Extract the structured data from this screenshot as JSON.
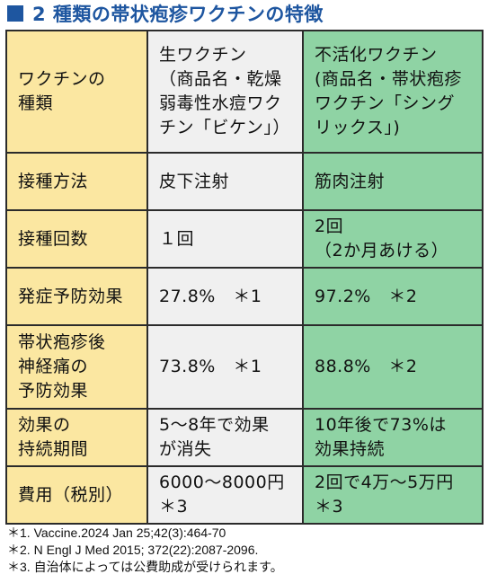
{
  "title": "2 種類の帯状疱疹ワクチンの特徴",
  "colors": {
    "title_blue": "#1e56a0",
    "label_column": "#fbe7a1",
    "live_column": "#f0f0f0",
    "recombinant_column": "#8fd3a4",
    "border": "#2b2b2b"
  },
  "icons": {
    "title_marker": "filled-square"
  },
  "table": {
    "rows": [
      {
        "label": "ワクチンの\n種類",
        "live": "生ワクチン\n（商品名・乾燥\n弱毒性水痘ワク\nチン「ビケン」）",
        "recombinant": "不活化ワクチン\n(商品名・帯状疱疹\nワクチン「シング\nリックス」)"
      },
      {
        "label": "接種方法",
        "live": "皮下注射",
        "recombinant": "筋肉注射"
      },
      {
        "label": "接種回数",
        "live": "１回",
        "recombinant": "2回\n（2か月あける）"
      },
      {
        "label": "発症予防効果",
        "live": "27.8%　＊1",
        "recombinant": "97.2%　＊2"
      },
      {
        "label": "帯状疱疹後\n神経痛の\n予防効果",
        "live": "73.8%　＊1",
        "recombinant": "88.8%　＊2"
      },
      {
        "label": "効果の\n持続期間",
        "live": "5～8年で効果\nが消失",
        "recombinant": "10年後で73%は\n効果持続"
      },
      {
        "label": "費用（税別）",
        "live": "6000～8000円\n＊3",
        "recombinant": "2回で4万～5万円\n＊3"
      }
    ]
  },
  "footnotes": [
    "＊1.  Vaccine.2024 Jan 25;42(3):464-70",
    "＊2.  N Engl J Med 2015; 372(22):2087-2096.",
    "＊3.  自治体によっては公費助成が受けられます。"
  ]
}
